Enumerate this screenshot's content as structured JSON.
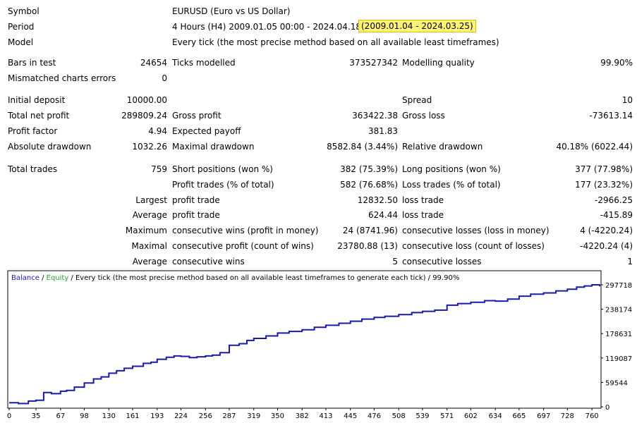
{
  "report": {
    "symbol_label": "Symbol",
    "symbol_value": "EURUSD (Euro vs US Dollar)",
    "period_label": "Period",
    "period_value": "4 Hours (H4) 2009.01.05 00:00 - 2024.04.18 08:59",
    "period_highlight": "(2009.01.04 - 2024.03.25)",
    "model_label": "Model",
    "model_value": "Every tick (the most precise method based on all available least timeframes)",
    "bars_label": "Bars in test",
    "bars_value": "24654",
    "ticks_label": "Ticks modelled",
    "ticks_value": "373527342",
    "quality_label": "Modelling quality",
    "quality_value": "99.90%",
    "mismatch_label": "Mismatched charts errors",
    "mismatch_value": "0",
    "deposit_label": "Initial deposit",
    "deposit_value": "10000.00",
    "spread_label": "Spread",
    "spread_value": "10",
    "net_label": "Total net profit",
    "net_value": "289809.24",
    "gross_profit_label": "Gross profit",
    "gross_profit_value": "363422.38",
    "gross_loss_label": "Gross loss",
    "gross_loss_value": "-73613.14",
    "pf_label": "Profit factor",
    "pf_value": "4.94",
    "payoff_label": "Expected payoff",
    "payoff_value": "381.83",
    "abs_dd_label": "Absolute drawdown",
    "abs_dd_value": "1032.26",
    "max_dd_label": "Maximal drawdown",
    "max_dd_value": "8582.84 (3.44%)",
    "rel_dd_label": "Relative drawdown",
    "rel_dd_value": "40.18% (6022.44)",
    "trades_label": "Total trades",
    "trades_value": "759",
    "short_label": "Short positions (won %)",
    "short_value": "382 (75.39%)",
    "long_label": "Long positions (won %)",
    "long_value": "377 (77.98%)",
    "ptrades_label": "Profit trades (% of total)",
    "ptrades_value": "582 (76.68%)",
    "ltrades_label": "Loss trades (% of total)",
    "ltrades_value": "177 (23.32%)",
    "largest_label": "Largest",
    "largest_pt_label": "profit trade",
    "largest_pt_value": "12832.50",
    "largest_lt_label": "loss trade",
    "largest_lt_value": "-2966.25",
    "average_label": "Average",
    "average_pt_label": "profit trade",
    "average_pt_value": "624.44",
    "average_lt_label": "loss trade",
    "average_lt_value": "-415.89",
    "maximum_label": "Maximum",
    "max_cw_label": "consecutive wins (profit in money)",
    "max_cw_value": "24 (8741.96)",
    "max_cl_label": "consecutive losses (loss in money)",
    "max_cl_value": "4 (-4220.24)",
    "maximal_label": "Maximal",
    "mxl_cp_label": "consecutive profit (count of wins)",
    "mxl_cp_value": "23780.88 (13)",
    "mxl_cl_label": "consecutive loss (count of losses)",
    "mxl_cl_value": "-4220.24 (4)",
    "avg2_label": "Average",
    "avg_cw_label": "consecutive wins",
    "avg_cw_value": "5",
    "avg_cl_label": "consecutive losses",
    "avg_cl_value": "1"
  },
  "chart_data": {
    "type": "line",
    "legend_balance": "Balance",
    "legend_sep1": " / ",
    "legend_equity": "Equity",
    "legend_rest": " / Every tick (the most precise method based on all available least timeframes to generate each tick) / 99.90%",
    "x_ticks": [
      "0",
      "35",
      "67",
      "98",
      "130",
      "161",
      "193",
      "224",
      "256",
      "287",
      "319",
      "350",
      "382",
      "413",
      "445",
      "476",
      "508",
      "539",
      "571",
      "602",
      "634",
      "665",
      "697",
      "728",
      "760"
    ],
    "y_ticks": [
      "297718",
      "238174",
      "178631",
      "119087",
      "59544",
      "0"
    ],
    "xlim": [
      0,
      770
    ],
    "ylim": [
      0,
      297718
    ],
    "colors": {
      "balance": "#1a1aa8",
      "equity": "#2aa02a",
      "axis": "#000000"
    },
    "series": [
      {
        "name": "Balance",
        "x": [
          0,
          12,
          25,
          35,
          45,
          55,
          67,
          75,
          85,
          98,
          110,
          120,
          130,
          140,
          150,
          161,
          175,
          185,
          193,
          205,
          215,
          224,
          235,
          245,
          256,
          265,
          275,
          287,
          300,
          310,
          319,
          335,
          350,
          365,
          382,
          398,
          413,
          430,
          445,
          460,
          476,
          490,
          508,
          525,
          539,
          555,
          571,
          585,
          602,
          620,
          634,
          650,
          665,
          680,
          697,
          713,
          728,
          740,
          750,
          760,
          770
        ],
        "y": [
          10000,
          8000,
          14000,
          16000,
          35000,
          32000,
          38000,
          40000,
          48000,
          58000,
          68000,
          73000,
          82000,
          88000,
          94000,
          99000,
          106000,
          109000,
          116000,
          121000,
          124000,
          123000,
          120000,
          122000,
          124000,
          126000,
          132000,
          150000,
          154000,
          162000,
          167000,
          173000,
          180000,
          184000,
          188000,
          194000,
          199000,
          204000,
          209000,
          214000,
          218000,
          221000,
          225000,
          230000,
          233000,
          236000,
          248000,
          252000,
          255000,
          259000,
          258000,
          263000,
          270000,
          275000,
          278000,
          283000,
          287000,
          292000,
          295000,
          297718,
          294000
        ]
      }
    ]
  }
}
